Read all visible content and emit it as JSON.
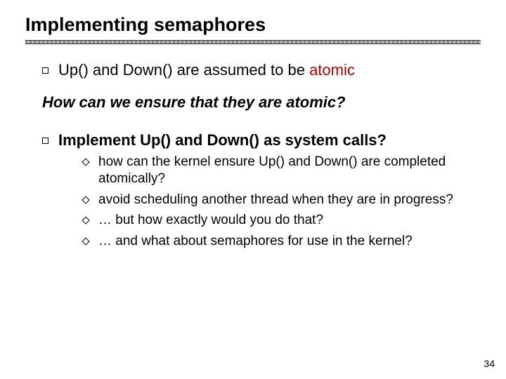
{
  "title": "Implementing semaphores",
  "line1_prefix": "Up() and Down() are assumed to be ",
  "line1_atomic": "atomic",
  "question": "How can we ensure that they are atomic?",
  "line2": "Implement Up() and Down() as system calls?",
  "subs": {
    "a": "how can the kernel ensure Up() and Down() are completed atomically?",
    "b": "avoid scheduling another thread when they are in progress?",
    "c": "… but how exactly would you do that?",
    "d": "… and what about semaphores for use in the kernel?"
  },
  "page_number": "34",
  "colors": {
    "atomic_red": "#b00000",
    "text": "#000000",
    "background": "#ffffff"
  }
}
